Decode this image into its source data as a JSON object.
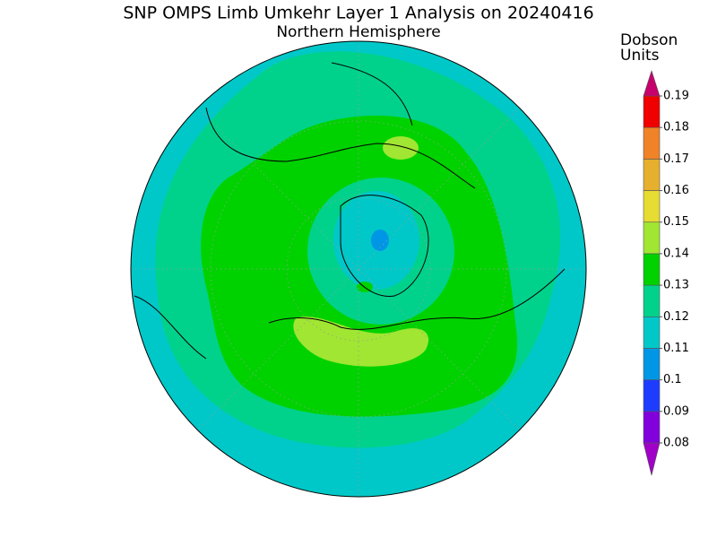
{
  "title": "SNP OMPS Limb Umkehr Layer 1 Analysis on 20240416",
  "subtitle": "Northern Hemisphere",
  "colorbar": {
    "label": [
      "Dobson",
      "Units"
    ],
    "ticks": [
      0.08,
      0.09,
      0.1,
      0.11,
      0.12,
      0.13,
      0.14,
      0.15,
      0.16,
      0.17,
      0.18,
      0.19
    ],
    "colors": [
      "#a000c8",
      "#8200dc",
      "#1e3cff",
      "#0096e6",
      "#00c8c8",
      "#00d28c",
      "#00d200",
      "#a0e632",
      "#e6dc32",
      "#e6af2d",
      "#f08228",
      "#f00000",
      "#c8006e"
    ]
  }
}
